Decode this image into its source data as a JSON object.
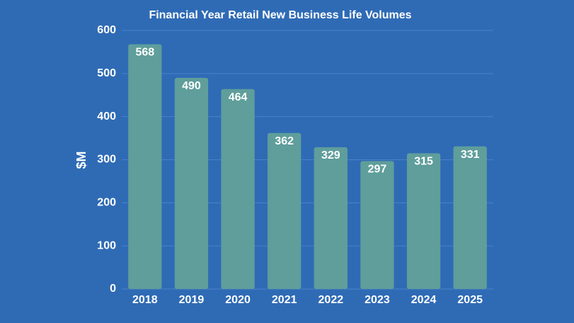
{
  "chart_data": {
    "type": "bar",
    "title": "Financial Year Retail New Business Life Volumes",
    "y_label": "$M",
    "categories": [
      "2018",
      "2019",
      "2020",
      "2021",
      "2022",
      "2023",
      "2024",
      "2025"
    ],
    "values": [
      568,
      490,
      464,
      362,
      329,
      297,
      315,
      331
    ],
    "color": "#5f9e9b",
    "ylim": [
      0,
      600
    ],
    "yticks": [
      0,
      100,
      200,
      300,
      400,
      500,
      600
    ],
    "grid": true
  }
}
